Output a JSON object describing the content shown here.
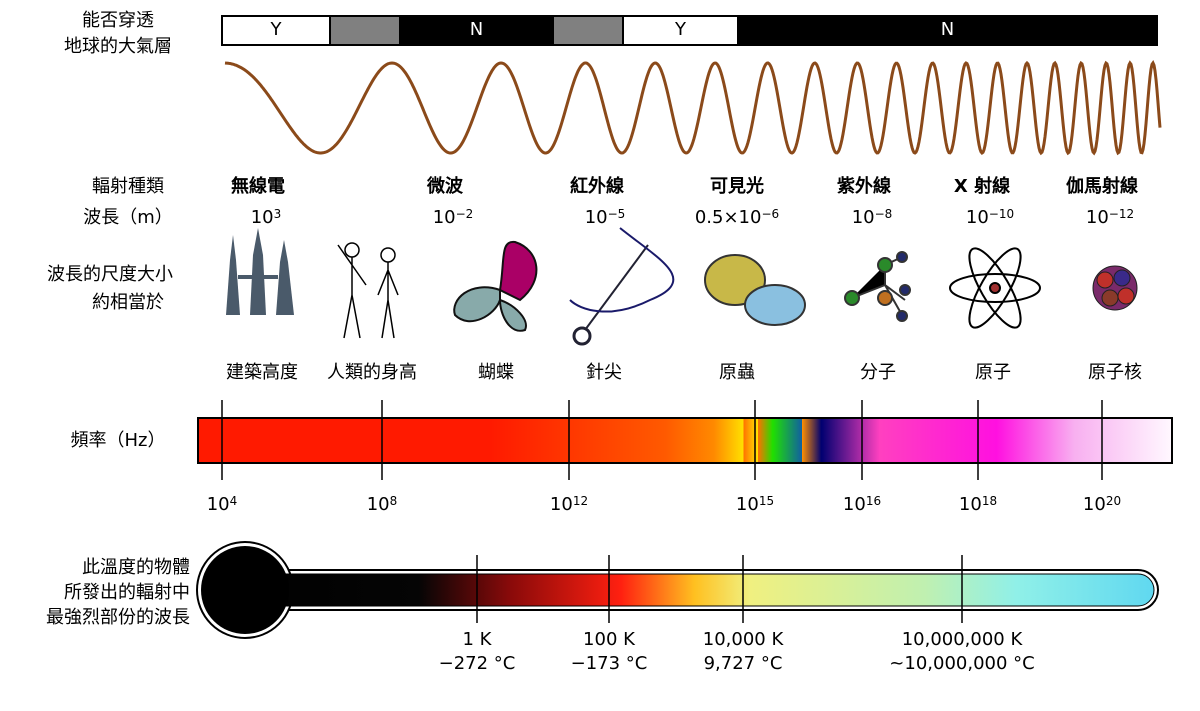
{
  "atmosphere": {
    "label_line1": "能否穿透",
    "label_line2": "地球的大氣層",
    "segments": [
      {
        "label": "Y",
        "state": "yes"
      },
      {
        "label": "",
        "state": "partial"
      },
      {
        "label": "N",
        "state": "no"
      },
      {
        "label": "",
        "state": "partial"
      },
      {
        "label": "Y",
        "state": "yes"
      },
      {
        "label": "N",
        "state": "no"
      }
    ]
  },
  "row_labels": {
    "type": "輻射種類",
    "wavelength": "波長（m）",
    "scale_line1": "波長的尺度大小",
    "scale_line2": "約相當於",
    "frequency": "頻率（Hz）",
    "temp_line1": "此溫度的物體",
    "temp_line2": "所發出的輻射中",
    "temp_line3": "最強烈部份的波長"
  },
  "bands": [
    {
      "name": "無線電",
      "wl_base": "10",
      "wl_exp": "3",
      "scale": "建築高度",
      "icon": "towers-icon"
    },
    {
      "name": "微波",
      "wl_base": "10",
      "wl_exp": "−2",
      "scale": "人類的身高",
      "icon": "humans-icon"
    },
    {
      "name": "",
      "wl_base": "",
      "wl_exp": "",
      "scale": "蝴蝶",
      "icon": "butterfly-icon"
    },
    {
      "name": "紅外線",
      "wl_base": "10",
      "wl_exp": "−5",
      "scale": "針尖",
      "icon": "needle-icon"
    },
    {
      "name": "可見光",
      "wl_base": "0.5×10",
      "wl_exp": "−6",
      "scale": "原蟲",
      "icon": "protozoa-icon"
    },
    {
      "name": "紫外線",
      "wl_base": "10",
      "wl_exp": "−8",
      "scale": "分子",
      "icon": "molecule-icon"
    },
    {
      "name": "X 射線",
      "wl_base": "10",
      "wl_exp": "−10",
      "scale": "原子",
      "icon": "atom-icon"
    },
    {
      "name": "伽馬射線",
      "wl_base": "10",
      "wl_exp": "−12",
      "scale": "原子核",
      "icon": "nucleus-icon"
    }
  ],
  "frequency_ticks": [
    {
      "base": "10",
      "exp": "4"
    },
    {
      "base": "10",
      "exp": "8"
    },
    {
      "base": "10",
      "exp": "12"
    },
    {
      "base": "10",
      "exp": "15"
    },
    {
      "base": "10",
      "exp": "16"
    },
    {
      "base": "10",
      "exp": "18"
    },
    {
      "base": "10",
      "exp": "20"
    }
  ],
  "temperature_ticks": [
    {
      "kelvin": "1 K",
      "celsius": "−272 °C"
    },
    {
      "kelvin": "100 K",
      "celsius": "−173 °C"
    },
    {
      "kelvin": "10,000 K",
      "celsius": "9,727 °C"
    },
    {
      "kelvin": "10,000,000 K",
      "celsius": "~10,000,000 °C"
    }
  ],
  "colors": {
    "wave": "#8b4a1a",
    "wave_highlight": "#e02020",
    "partial": "#808080"
  }
}
